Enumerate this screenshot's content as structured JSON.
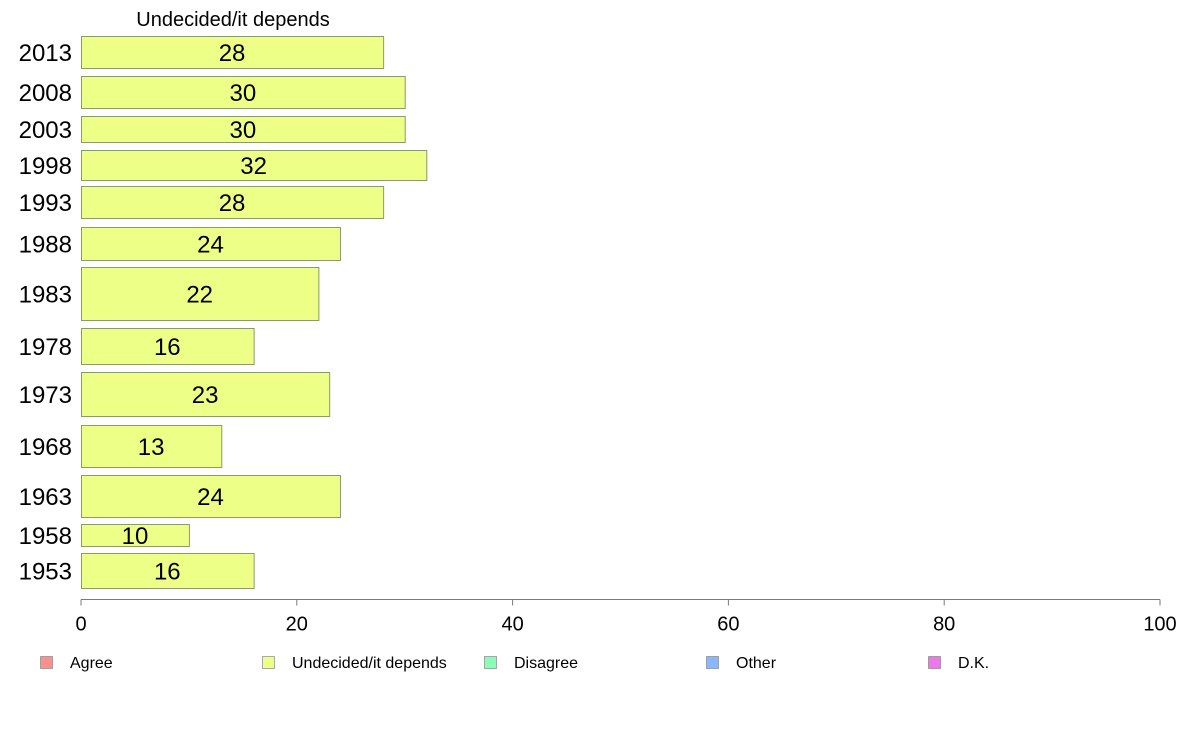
{
  "chart_data": {
    "type": "bar",
    "orientation": "horizontal",
    "title": "Undecided/it depends",
    "categories": [
      "2013",
      "2008",
      "2003",
      "1998",
      "1993",
      "1988",
      "1983",
      "1978",
      "1973",
      "1968",
      "1963",
      "1958",
      "1953"
    ],
    "series": [
      {
        "name": "Undecided/it depends",
        "values": [
          28,
          30,
          30,
          32,
          28,
          24,
          22,
          16,
          23,
          13,
          24,
          10,
          16
        ],
        "color": "#eeff88"
      }
    ],
    "xlim": [
      0,
      100
    ],
    "xticks": [
      0,
      20,
      40,
      60,
      80,
      100
    ],
    "grid": false,
    "legend": {
      "placement": "bottom",
      "items": [
        {
          "label": "Agree",
          "color": "#ff8f8f"
        },
        {
          "label": "Undecided/it depends",
          "color": "#eeff88"
        },
        {
          "label": "Disagree",
          "color": "#88ffb8"
        },
        {
          "label": "Other",
          "color": "#88b8ff"
        },
        {
          "label": "D.K.",
          "color": "#ee77ee"
        }
      ]
    }
  }
}
